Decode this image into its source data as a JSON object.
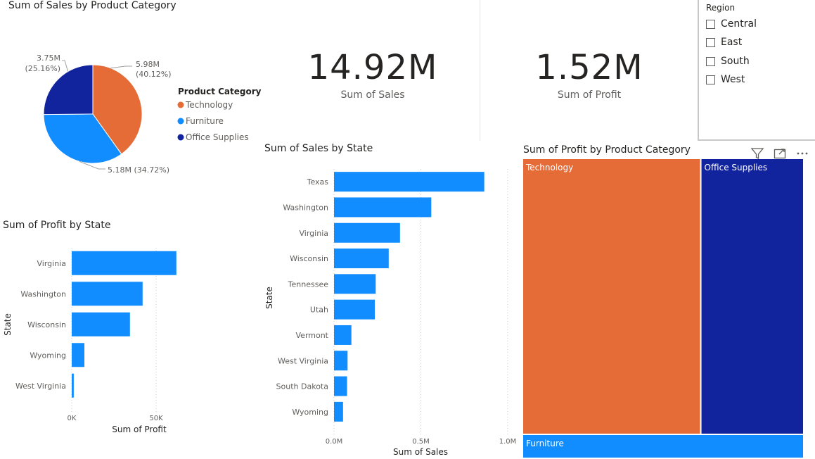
{
  "pie": {
    "title": "Sum of Sales by Product Category",
    "legend_title": "Product Category",
    "chart_data": {
      "type": "pie",
      "title": "Sum of Sales by Product Category",
      "categories": [
        "Technology",
        "Furniture",
        "Office Supplies"
      ],
      "values": [
        5.98,
        5.18,
        3.75
      ],
      "percents": [
        40.12,
        34.72,
        25.16
      ],
      "labels": [
        "5.98M\n(40.12%)",
        "5.18M (34.72%)",
        "3.75M\n(25.16%)"
      ],
      "colors": [
        "#E66C37",
        "#118DFF",
        "#12239E"
      ],
      "legend_position": "right"
    }
  },
  "kpi_sales": {
    "value": "14.92M",
    "label": "Sum of Sales"
  },
  "kpi_profit": {
    "value": "1.52M",
    "label": "Sum of Profit"
  },
  "slicer": {
    "title": "Region",
    "items": [
      "Central",
      "East",
      "South",
      "West"
    ]
  },
  "profit_by_state": {
    "title": "Sum of Profit by State",
    "chart_data": {
      "type": "bar",
      "orientation": "horizontal",
      "title": "Sum of Profit by State",
      "categories": [
        "Virginia",
        "Washington",
        "Wisconsin",
        "Wyoming",
        "West Virginia"
      ],
      "values": [
        62000,
        42000,
        34500,
        7500,
        1200
      ],
      "xlabel": "Sum of Profit",
      "ylabel": "State",
      "xlim": [
        0,
        70000
      ],
      "xticks": [
        0,
        50000
      ],
      "xtick_labels": [
        "0K",
        "50K"
      ],
      "color": "#118DFF"
    }
  },
  "sales_by_state": {
    "title": "Sum of Sales by State",
    "chart_data": {
      "type": "bar",
      "orientation": "horizontal",
      "title": "Sum of Sales by State",
      "categories": [
        "Texas",
        "Washington",
        "Virginia",
        "Wisconsin",
        "Tennessee",
        "Utah",
        "Vermont",
        "West Virginia",
        "South Dakota",
        "Wyoming"
      ],
      "values": [
        865000,
        560000,
        380000,
        315000,
        240000,
        235000,
        100000,
        78000,
        75000,
        52000
      ],
      "xlabel": "Sum of Sales",
      "ylabel": "State",
      "xlim": [
        0,
        1000000
      ],
      "xticks": [
        0,
        500000,
        1000000
      ],
      "xtick_labels": [
        "0.0M",
        "0.5M",
        "1.0M"
      ],
      "color": "#118DFF"
    }
  },
  "treemap": {
    "title": "Sum of Profit by Product Category",
    "chart_data": {
      "type": "treemap",
      "title": "Sum of Profit by Product Category",
      "categories": [
        "Technology",
        "Office Supplies",
        "Furniture"
      ],
      "values": [
        0.955,
        0.55,
        0.012
      ],
      "colors": [
        "#E66C37",
        "#12239E",
        "#118DFF"
      ]
    }
  },
  "icons": {
    "filter": "filter-icon",
    "focus": "focus-mode-icon",
    "more": "more-options-icon"
  }
}
